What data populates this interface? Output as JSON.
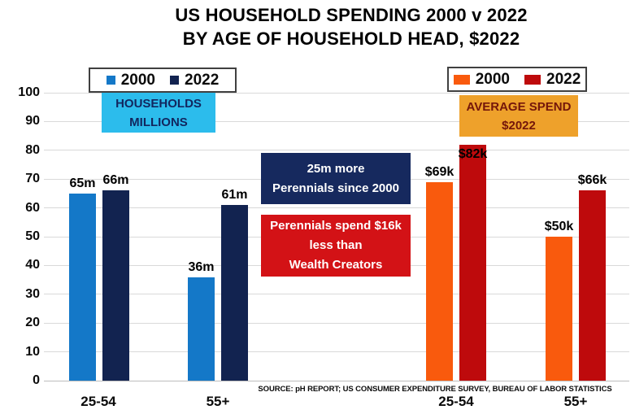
{
  "title": {
    "line1": "US HOUSEHOLD SPENDING 2000 v 2022",
    "line2": "BY AGE OF HOUSEHOLD HEAD, $2022"
  },
  "source": "SOURCE: pH REPORT; US CONSUMER EXPENDITURE SURVEY, BUREAU OF LABOR STATISTICS",
  "y_axis": {
    "ticks": [
      100,
      90,
      80,
      70,
      60,
      50,
      40,
      30,
      20,
      10,
      0
    ]
  },
  "chart_data": {
    "type": "bar",
    "title": "US HOUSEHOLD SPENDING 2000 v 2022 BY AGE OF HOUSEHOLD HEAD, $2022",
    "xlabel": "",
    "ylabel": "",
    "ylim": [
      0,
      100
    ],
    "grid": true,
    "legend_position": "top",
    "groups": [
      {
        "name": "Households, millions",
        "box_label": {
          "line1": "HOUSEHOLDS",
          "line2": "MILLIONS",
          "bg": "#2cbcec",
          "text_color": "#12265e"
        },
        "categories": [
          "25-54",
          "55+"
        ],
        "series": [
          {
            "name": "2000",
            "color": "#1478c8",
            "values": [
              65,
              36
            ],
            "labels": [
              "65m",
              "36m"
            ]
          },
          {
            "name": "2022",
            "color": "#122350",
            "values": [
              66,
              61
            ],
            "labels": [
              "66m",
              "61m"
            ]
          }
        ]
      },
      {
        "name": "Average spend, $2022",
        "box_label": {
          "line1": "AVERAGE SPEND",
          "line2": "$2022",
          "bg": "#eea12b",
          "text_color": "#74160a"
        },
        "categories": [
          "25-54",
          "55+"
        ],
        "series": [
          {
            "name": "2000",
            "color": "#f95a0d",
            "values": [
              69,
              50
            ],
            "labels": [
              "$69k",
              "$50k"
            ]
          },
          {
            "name": "2022",
            "color": "#be0a0c",
            "values": [
              82,
              66
            ],
            "labels": [
              "$82k",
              "$66k"
            ]
          }
        ]
      }
    ],
    "annotations": [
      {
        "lines": [
          "25m more",
          "Perennials since 2000"
        ],
        "bg": "#16295e",
        "text_color": "#ffffff"
      },
      {
        "lines": [
          "Perennials spend $16k",
          "less than",
          "Wealth Creators"
        ],
        "bg": "#d31216",
        "text_color": "#ffffff"
      }
    ]
  },
  "colors": {
    "grid": "#d9d9d9",
    "axis_line": "#bdbdbd",
    "legend_border": "#404040",
    "text": "#0b0b0b"
  }
}
